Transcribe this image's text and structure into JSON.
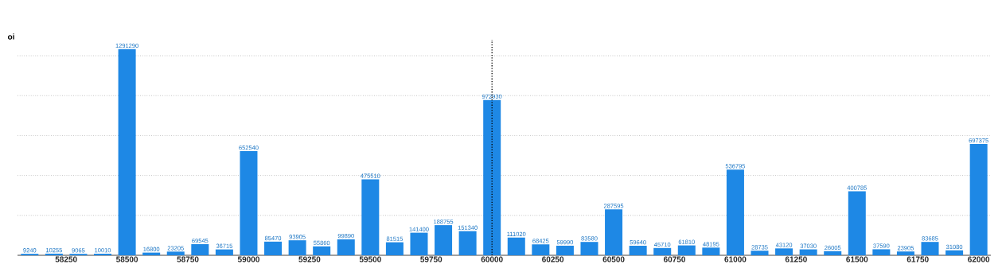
{
  "chart_data": {
    "type": "bar",
    "ylabel": "oi",
    "x": [
      58100,
      58200,
      58300,
      58400,
      58500,
      58600,
      58700,
      58800,
      58900,
      59000,
      59100,
      59200,
      59300,
      59400,
      59500,
      59600,
      59700,
      59800,
      59900,
      60000,
      60100,
      60200,
      60300,
      60400,
      60500,
      60600,
      60700,
      60800,
      60900,
      61000,
      61100,
      61200,
      61300,
      61400,
      61500,
      61600,
      61700,
      61800,
      61900,
      62000
    ],
    "series": [
      {
        "color": "#1e88e5",
        "values": [
          9240,
          10255,
          9065,
          10010,
          1291290,
          16800,
          23205,
          69545,
          36715,
          652540,
          85470,
          93905,
          55860,
          99890,
          475510,
          81515,
          141400,
          188755,
          151340,
          972930,
          111020,
          68425,
          59990,
          83580,
          287595,
          59640,
          45710,
          61810,
          48195,
          536795,
          28735,
          43120,
          37030,
          26005,
          400785,
          37590,
          23905,
          83685,
          31080,
          697375
        ]
      }
    ],
    "data_labels": true,
    "xlim": [
      58050,
      62050
    ],
    "xticks": [
      58250,
      58500,
      58750,
      59000,
      59250,
      59500,
      59750,
      60000,
      60250,
      60500,
      60750,
      61000,
      61250,
      61500,
      61750,
      62000
    ],
    "ylim": [
      0,
      1350000
    ],
    "yticks": [
      {
        "value": 250000,
        "label": null
      },
      {
        "value": 500000,
        "label": null
      },
      {
        "value": 750000,
        "label": null
      },
      {
        "value": 1000000,
        "label": null
      },
      {
        "value": 1250000,
        "label": null
      }
    ],
    "tick_labels": "x",
    "grid": "y",
    "ref_lines": [
      {
        "axis": "x",
        "value": 60000,
        "color": "#000000",
        "line_style": "dotted"
      }
    ]
  }
}
